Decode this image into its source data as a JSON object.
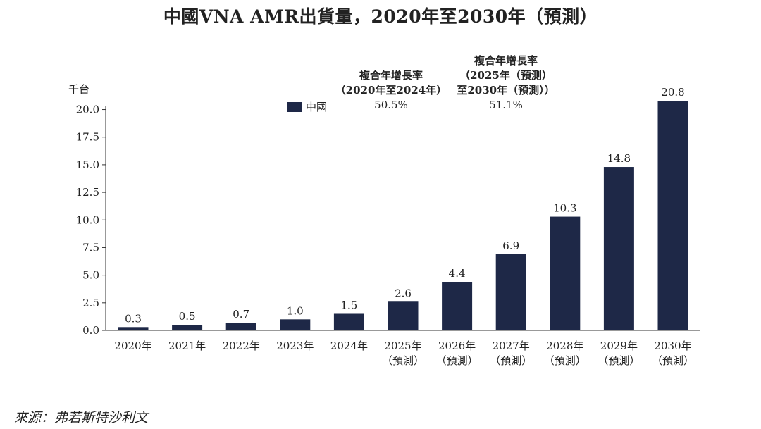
{
  "title": "中國VNA AMR出貨量，2020年至2030年（預測）",
  "legend": {
    "label": "中國",
    "color": "#1e2847"
  },
  "cagr1": {
    "line1": "複合年增長率",
    "line2": "（2020年至2024年）",
    "value": "50.5%"
  },
  "cagr2": {
    "line1": "複合年增長率",
    "line2": "（2025年（預測）",
    "line3": "至2030年（預測））",
    "value": "51.1%"
  },
  "source": "來源：弗若斯特沙利文",
  "chart_data": {
    "type": "bar",
    "title": "中國VNA AMR出貨量，2020年至2030年（預測）",
    "ylabel": "千台",
    "xlabel": "",
    "ylim": [
      0,
      20.8
    ],
    "yticks": [
      "0.0",
      "2.5",
      "5.0",
      "7.5",
      "10.0",
      "12.5",
      "15.0",
      "17.5",
      "20.0"
    ],
    "categories": [
      "2020年",
      "2021年",
      "2022年",
      "2023年",
      "2024年",
      "2025年",
      "2026年",
      "2027年",
      "2028年",
      "2029年",
      "2030年"
    ],
    "category_sublabels": [
      "",
      "",
      "",
      "",
      "",
      "（預測）",
      "（預測）",
      "（預測）",
      "（預測）",
      "（預測）",
      "（預測）"
    ],
    "series": [
      {
        "name": "中國",
        "values": [
          0.3,
          0.5,
          0.7,
          1.0,
          1.5,
          2.6,
          4.4,
          6.9,
          10.3,
          14.8,
          20.8
        ]
      }
    ],
    "data_labels": [
      "0.3",
      "0.5",
      "0.7",
      "1.0",
      "1.5",
      "2.6",
      "4.4",
      "6.9",
      "10.3",
      "14.8",
      "20.8"
    ]
  }
}
